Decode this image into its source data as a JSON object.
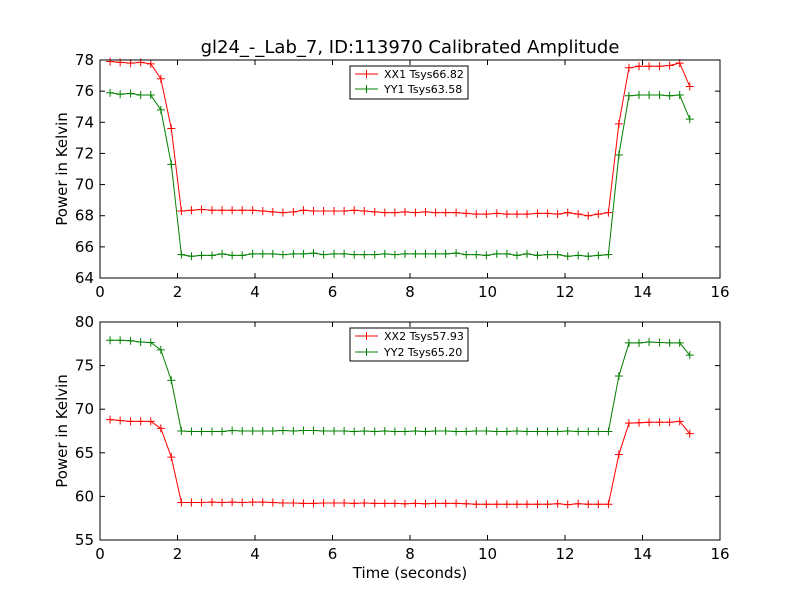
{
  "chart_data": [
    {
      "type": "line",
      "title": "gl24_-_Lab_7, ID:113970 Calibrated Amplitude",
      "xlabel": "",
      "ylabel": "Power in Kelvin",
      "xlim": [
        0,
        16
      ],
      "ylim": [
        64,
        78
      ],
      "xticks": [
        0,
        2,
        4,
        6,
        8,
        10,
        12,
        14,
        16
      ],
      "yticks": [
        64,
        66,
        68,
        70,
        72,
        74,
        76,
        78
      ],
      "grid": false,
      "legend": "top-center",
      "x": [
        0.26,
        0.52,
        0.79,
        1.05,
        1.31,
        1.57,
        1.84,
        2.1,
        2.36,
        2.62,
        2.89,
        3.15,
        3.41,
        3.67,
        3.94,
        4.2,
        4.46,
        4.72,
        4.99,
        5.25,
        5.51,
        5.77,
        6.04,
        6.3,
        6.56,
        6.82,
        7.09,
        7.35,
        7.61,
        7.87,
        8.14,
        8.4,
        8.66,
        8.92,
        9.19,
        9.45,
        9.71,
        9.97,
        10.24,
        10.5,
        10.76,
        11.02,
        11.29,
        11.55,
        11.81,
        12.07,
        12.34,
        12.6,
        12.86,
        13.12,
        13.39,
        13.65,
        13.91,
        14.17,
        14.44,
        14.7,
        14.96,
        15.22
      ],
      "series": [
        {
          "name": "XX1 Tsys66.82",
          "color": "#ff0000",
          "values": [
            77.9,
            77.85,
            77.8,
            77.85,
            77.75,
            76.8,
            73.6,
            68.3,
            68.35,
            68.4,
            68.35,
            68.35,
            68.35,
            68.35,
            68.35,
            68.3,
            68.25,
            68.2,
            68.25,
            68.35,
            68.3,
            68.3,
            68.3,
            68.3,
            68.35,
            68.3,
            68.25,
            68.2,
            68.2,
            68.25,
            68.2,
            68.25,
            68.2,
            68.2,
            68.2,
            68.15,
            68.1,
            68.1,
            68.15,
            68.1,
            68.1,
            68.1,
            68.15,
            68.15,
            68.1,
            68.2,
            68.1,
            68.0,
            68.1,
            68.2,
            73.9,
            77.5,
            77.6,
            77.6,
            77.6,
            77.65,
            77.8,
            76.3
          ]
        },
        {
          "name": "YY1 Tsys63.58",
          "color": "#008000",
          "values": [
            75.9,
            75.8,
            75.85,
            75.75,
            75.75,
            74.8,
            71.3,
            65.5,
            65.4,
            65.45,
            65.45,
            65.55,
            65.45,
            65.45,
            65.55,
            65.55,
            65.55,
            65.5,
            65.55,
            65.55,
            65.6,
            65.5,
            65.55,
            65.55,
            65.5,
            65.5,
            65.5,
            65.55,
            65.5,
            65.55,
            65.55,
            65.55,
            65.55,
            65.55,
            65.6,
            65.5,
            65.5,
            65.45,
            65.55,
            65.55,
            65.45,
            65.55,
            65.45,
            65.5,
            65.5,
            65.4,
            65.45,
            65.4,
            65.45,
            65.5,
            71.9,
            75.7,
            75.75,
            75.75,
            75.75,
            75.7,
            75.75,
            74.2
          ]
        }
      ]
    },
    {
      "type": "line",
      "title": "",
      "xlabel": "Time (seconds)",
      "ylabel": "Power in Kelvin",
      "xlim": [
        0,
        16
      ],
      "ylim": [
        55,
        80
      ],
      "xticks": [
        0,
        2,
        4,
        6,
        8,
        10,
        12,
        14,
        16
      ],
      "yticks": [
        55,
        60,
        65,
        70,
        75,
        80
      ],
      "grid": false,
      "legend": "top-center",
      "x": [
        0.26,
        0.52,
        0.79,
        1.05,
        1.31,
        1.57,
        1.84,
        2.1,
        2.36,
        2.62,
        2.89,
        3.15,
        3.41,
        3.67,
        3.94,
        4.2,
        4.46,
        4.72,
        4.99,
        5.25,
        5.51,
        5.77,
        6.04,
        6.3,
        6.56,
        6.82,
        7.09,
        7.35,
        7.61,
        7.87,
        8.14,
        8.4,
        8.66,
        8.92,
        9.19,
        9.45,
        9.71,
        9.97,
        10.24,
        10.5,
        10.76,
        11.02,
        11.29,
        11.55,
        11.81,
        12.07,
        12.34,
        12.6,
        12.86,
        13.12,
        13.39,
        13.65,
        13.91,
        14.17,
        14.44,
        14.7,
        14.96,
        15.22
      ],
      "series": [
        {
          "name": "XX2 Tsys57.93",
          "color": "#ff0000",
          "values": [
            68.8,
            68.7,
            68.6,
            68.6,
            68.6,
            67.8,
            64.5,
            59.3,
            59.3,
            59.3,
            59.35,
            59.3,
            59.35,
            59.3,
            59.35,
            59.35,
            59.3,
            59.25,
            59.25,
            59.2,
            59.2,
            59.25,
            59.25,
            59.25,
            59.2,
            59.25,
            59.2,
            59.2,
            59.2,
            59.15,
            59.2,
            59.15,
            59.2,
            59.2,
            59.2,
            59.15,
            59.1,
            59.1,
            59.1,
            59.1,
            59.1,
            59.1,
            59.1,
            59.1,
            59.15,
            59.05,
            59.15,
            59.1,
            59.1,
            59.1,
            64.8,
            68.4,
            68.45,
            68.5,
            68.5,
            68.5,
            68.6,
            67.2
          ]
        },
        {
          "name": "YY2 Tsys65.20",
          "color": "#008000",
          "values": [
            77.9,
            77.9,
            77.85,
            77.7,
            77.65,
            76.8,
            73.3,
            67.5,
            67.45,
            67.45,
            67.45,
            67.45,
            67.55,
            67.5,
            67.5,
            67.5,
            67.5,
            67.55,
            67.5,
            67.55,
            67.55,
            67.5,
            67.5,
            67.5,
            67.45,
            67.5,
            67.45,
            67.5,
            67.45,
            67.45,
            67.5,
            67.45,
            67.5,
            67.5,
            67.45,
            67.45,
            67.5,
            67.5,
            67.45,
            67.45,
            67.5,
            67.45,
            67.45,
            67.45,
            67.45,
            67.5,
            67.45,
            67.45,
            67.45,
            67.45,
            73.8,
            77.6,
            77.6,
            77.7,
            77.65,
            77.6,
            77.6,
            76.2
          ]
        }
      ]
    }
  ]
}
